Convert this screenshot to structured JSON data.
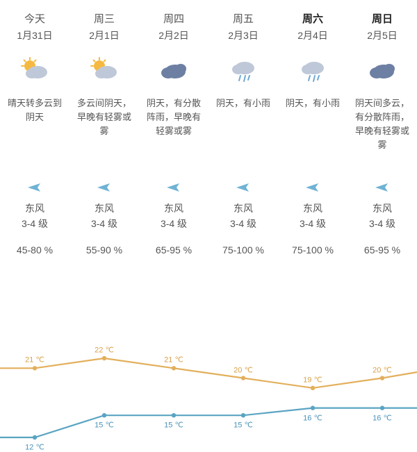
{
  "colors": {
    "text": "#555555",
    "text_strong": "#222222",
    "high_line": "#e2af5b",
    "low_line": "#5aa4c2",
    "wind_arrow": "#6fb3d4",
    "cloud_dark": "#6d7fa3",
    "cloud_light": "#bfc8d8",
    "sun": "#f5b941",
    "rain": "#6fa8d4"
  },
  "chart": {
    "height": 140,
    "y_top_pad": 16,
    "y_bottom_pad": 10,
    "high_range": [
      19,
      22
    ],
    "low_range": [
      12,
      17
    ],
    "line_width": 2.2,
    "dot_radius": 3.2,
    "label_fontsize": 11,
    "label_offset_high": -12,
    "label_offset_low": 14
  },
  "days": [
    {
      "name": "今天",
      "date": "1月31日",
      "weekend": false,
      "icon": "sun-cloud",
      "desc": "晴天转多云到阴天",
      "wind_dir": "东风",
      "wind_level": "3-4 级",
      "humidity": "45-80 %",
      "high": 21,
      "low": 12
    },
    {
      "name": "周三",
      "date": "2月1日",
      "weekend": false,
      "icon": "sun-cloud",
      "desc": "多云间阴天，早晚有轻雾或雾",
      "wind_dir": "东风",
      "wind_level": "3-4 级",
      "humidity": "55-90 %",
      "high": 22,
      "low": 15
    },
    {
      "name": "周四",
      "date": "2月2日",
      "weekend": false,
      "icon": "cloud",
      "desc": "阴天，有分散阵雨，早晚有轻雾或雾",
      "wind_dir": "东风",
      "wind_level": "3-4 级",
      "humidity": "65-95 %",
      "high": 21,
      "low": 15
    },
    {
      "name": "周五",
      "date": "2月3日",
      "weekend": false,
      "icon": "rain",
      "desc": "阴天，有小雨",
      "wind_dir": "东风",
      "wind_level": "3-4 级",
      "humidity": "75-100 %",
      "high": 20,
      "low": 15
    },
    {
      "name": "周六",
      "date": "2月4日",
      "weekend": true,
      "icon": "rain",
      "desc": "阴天，有小雨",
      "wind_dir": "东风",
      "wind_level": "3-4 级",
      "humidity": "75-100 %",
      "high": 19,
      "low": 16
    },
    {
      "name": "周日",
      "date": "2月5日",
      "weekend": true,
      "icon": "cloud",
      "desc": "阴天间多云，有分散阵雨，早晚有轻雾或雾",
      "wind_dir": "东风",
      "wind_level": "3-4 级",
      "humidity": "65-95 %",
      "high": 20,
      "low": 16
    }
  ]
}
